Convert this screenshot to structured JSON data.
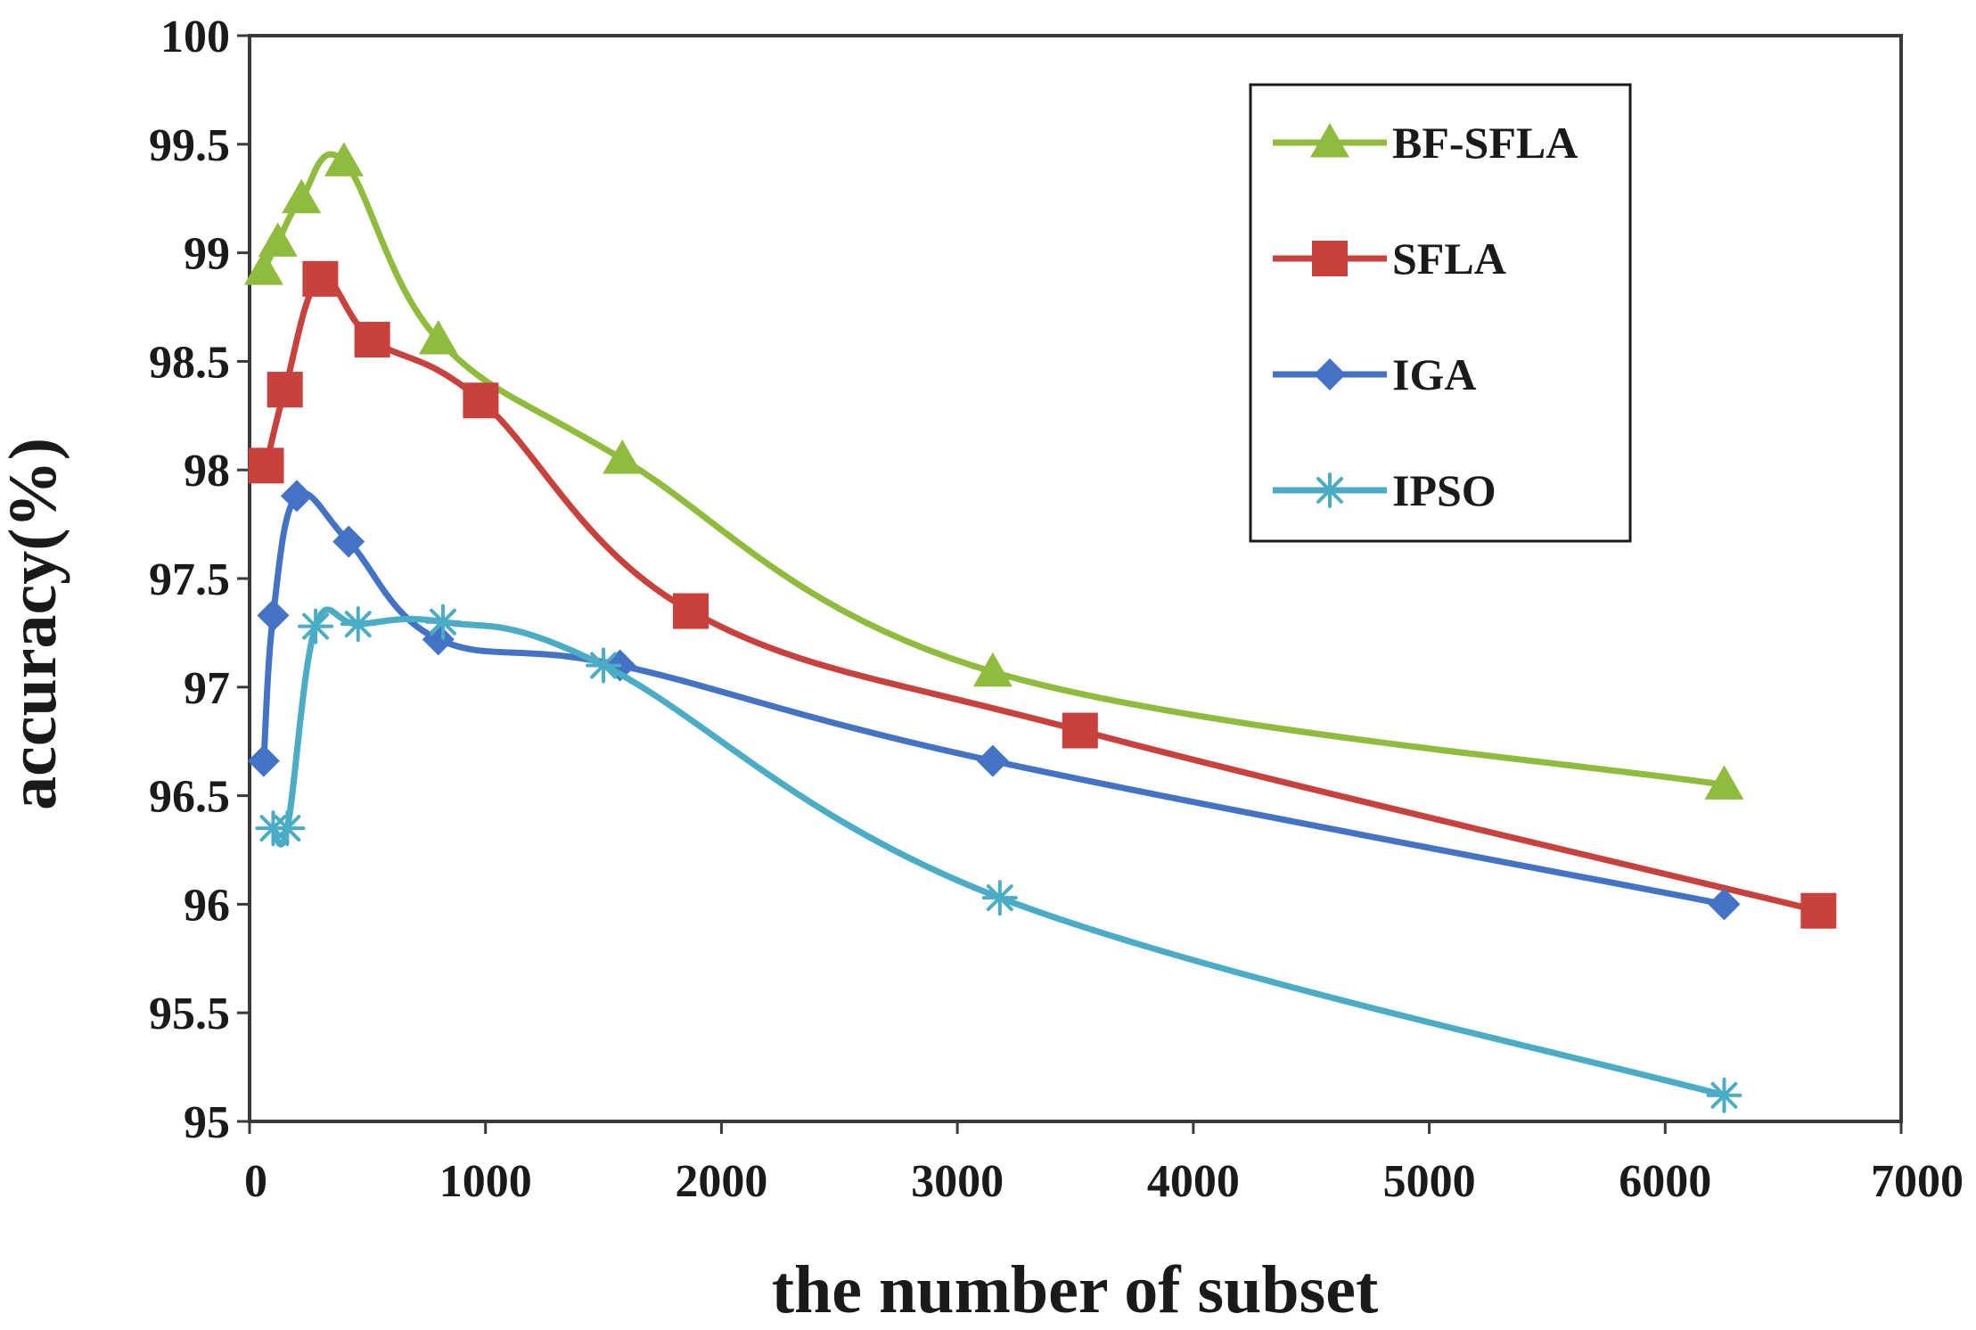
{
  "chart_data": {
    "type": "line",
    "title": "",
    "xlabel": "the number of subset",
    "ylabel": "accuracy(%)",
    "xlim": [
      0,
      7000
    ],
    "ylim": [
      95,
      100
    ],
    "xticks": [
      0,
      1000,
      2000,
      3000,
      4000,
      5000,
      6000,
      7000
    ],
    "yticks": [
      95,
      95.5,
      96,
      96.5,
      97,
      97.5,
      98,
      98.5,
      99,
      99.5,
      100
    ],
    "xtick_labels": [
      "0",
      "1000",
      "2000",
      "3000",
      "4000",
      "5000",
      "6000",
      "7000"
    ],
    "ytick_labels": [
      "95",
      "95.5",
      "96",
      "96.5",
      "97",
      "97.5",
      "98",
      "98.5",
      "99",
      "99.5",
      "100"
    ],
    "grid": false,
    "legend_position": "top-right",
    "series": [
      {
        "name": "BF-SFLA",
        "color": "#8fbc3c",
        "marker": "triangle",
        "x": [
          60,
          120,
          220,
          400,
          800,
          1580,
          3150,
          6250
        ],
        "y": [
          98.92,
          99.05,
          99.25,
          99.42,
          98.6,
          98.05,
          97.07,
          96.55
        ]
      },
      {
        "name": "SFLA",
        "color": "#c8413d",
        "marker": "square",
        "x": [
          70,
          150,
          300,
          520,
          980,
          1870,
          3520,
          6650
        ],
        "y": [
          98.02,
          98.37,
          98.88,
          98.6,
          98.32,
          97.35,
          96.8,
          95.97
        ]
      },
      {
        "name": "IGA",
        "color": "#4472c4",
        "marker": "diamond",
        "x": [
          60,
          100,
          200,
          420,
          800,
          1570,
          3150,
          6250
        ],
        "y": [
          96.66,
          97.33,
          97.88,
          97.67,
          97.22,
          97.1,
          96.66,
          96.0
        ]
      },
      {
        "name": "IPSO",
        "color": "#4bacc6",
        "marker": "star",
        "x": [
          100,
          160,
          280,
          460,
          820,
          1500,
          3180,
          6250
        ],
        "y": [
          96.35,
          96.35,
          97.28,
          97.29,
          97.3,
          97.1,
          96.03,
          95.12
        ]
      }
    ]
  }
}
